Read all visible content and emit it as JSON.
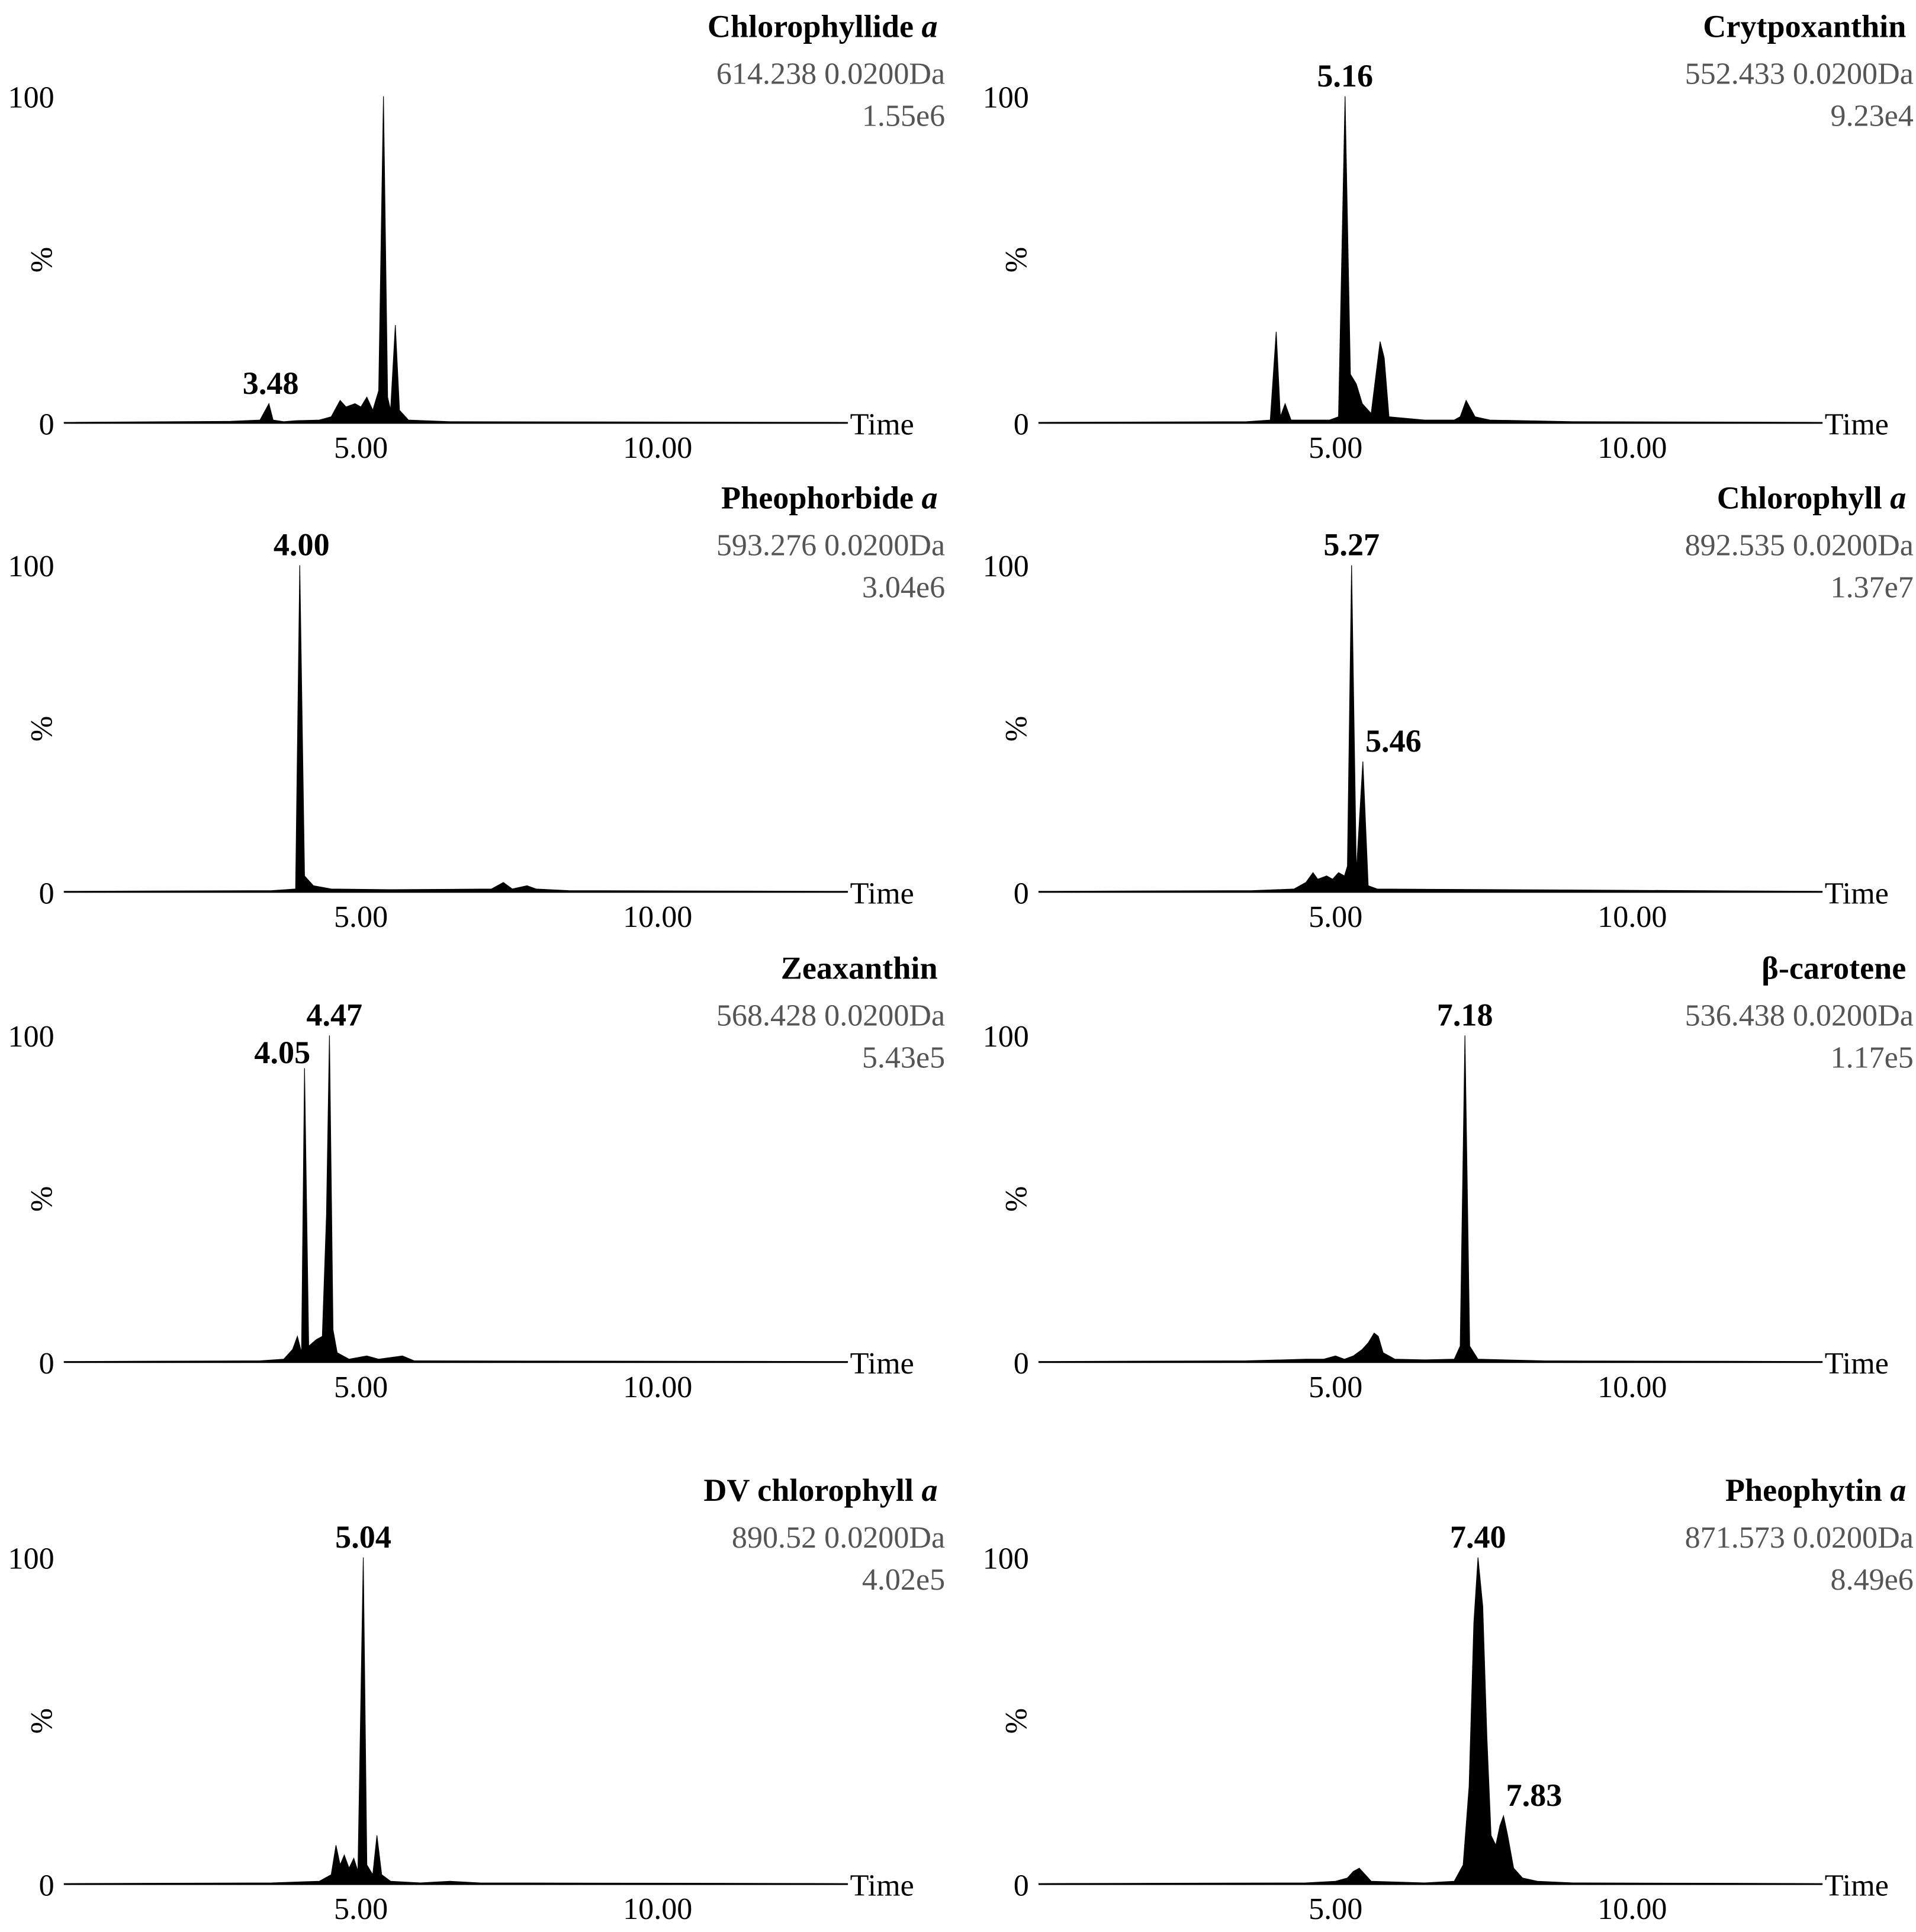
{
  "chart_data": [
    {
      "type": "area",
      "title": "Chlorophyllide",
      "title_italic": "a",
      "mass": "614.238 0.0200Da",
      "intensity": "1.55e6",
      "ylabel": "%",
      "xlabel": "Time",
      "yticks": [
        "0",
        "100"
      ],
      "xticks": [
        "5.00",
        "10.00"
      ],
      "xlim": [
        0,
        13.2
      ],
      "ylim": [
        0,
        100
      ],
      "peak_labels": [
        {
          "text": "3.48",
          "x": 3.48,
          "y": 6
        }
      ],
      "series": [
        {
          "values": [
            [
              0,
              0.3
            ],
            [
              2.8,
              0.6
            ],
            [
              3.3,
              1
            ],
            [
              3.45,
              6
            ],
            [
              3.52,
              1
            ],
            [
              3.7,
              0.5
            ],
            [
              3.9,
              0.8
            ],
            [
              4.3,
              1
            ],
            [
              4.5,
              2
            ],
            [
              4.65,
              7
            ],
            [
              4.75,
              5
            ],
            [
              4.9,
              6
            ],
            [
              5.0,
              5
            ],
            [
              5.1,
              8
            ],
            [
              5.2,
              4
            ],
            [
              5.3,
              10
            ],
            [
              5.38,
              100
            ],
            [
              5.45,
              8
            ],
            [
              5.5,
              4
            ],
            [
              5.58,
              30
            ],
            [
              5.65,
              4
            ],
            [
              5.8,
              1
            ],
            [
              6.5,
              0.5
            ],
            [
              13.2,
              0.3
            ]
          ]
        }
      ]
    },
    {
      "type": "area",
      "title": "Crytpoxanthin",
      "title_italic": "",
      "mass": "552.433 0.0200Da",
      "intensity": "9.23e4",
      "ylabel": "%",
      "xlabel": "Time",
      "yticks": [
        "0",
        "100"
      ],
      "xticks": [
        "5.00",
        "10.00"
      ],
      "xlim": [
        0,
        13.2
      ],
      "ylim": [
        0,
        100
      ],
      "peak_labels": [
        {
          "text": "5.16",
          "x": 5.16,
          "y": 100
        }
      ],
      "series": [
        {
          "values": [
            [
              0,
              0.3
            ],
            [
              3.5,
              0.5
            ],
            [
              3.9,
              1
            ],
            [
              4.0,
              28
            ],
            [
              4.07,
              2
            ],
            [
              4.15,
              6
            ],
            [
              4.25,
              1
            ],
            [
              4.6,
              1
            ],
            [
              4.9,
              1
            ],
            [
              5.05,
              2
            ],
            [
              5.16,
              100
            ],
            [
              5.25,
              15
            ],
            [
              5.35,
              12
            ],
            [
              5.45,
              6
            ],
            [
              5.6,
              3
            ],
            [
              5.75,
              25
            ],
            [
              5.82,
              20
            ],
            [
              5.9,
              2
            ],
            [
              6.5,
              1
            ],
            [
              7.0,
              1
            ],
            [
              7.1,
              2
            ],
            [
              7.2,
              7
            ],
            [
              7.35,
              2
            ],
            [
              7.6,
              1
            ],
            [
              9.0,
              0.5
            ],
            [
              13.2,
              0.3
            ]
          ]
        }
      ]
    },
    {
      "type": "area",
      "title": "Pheophorbide",
      "title_italic": "a",
      "mass": "593.276 0.0200Da",
      "intensity": "3.04e6",
      "ylabel": "%",
      "xlabel": "Time",
      "yticks": [
        "0",
        "100"
      ],
      "xticks": [
        "5.00",
        "10.00"
      ],
      "xlim": [
        0,
        13.2
      ],
      "ylim": [
        0,
        100
      ],
      "peak_labels": [
        {
          "text": "4.00",
          "x": 4.0,
          "y": 100
        }
      ],
      "series": [
        {
          "values": [
            [
              0,
              0.3
            ],
            [
              3.5,
              0.5
            ],
            [
              3.9,
              1
            ],
            [
              3.97,
              100
            ],
            [
              4.05,
              5
            ],
            [
              4.2,
              2
            ],
            [
              4.5,
              1
            ],
            [
              5.5,
              0.8
            ],
            [
              7.2,
              1
            ],
            [
              7.4,
              3
            ],
            [
              7.55,
              1
            ],
            [
              7.8,
              2
            ],
            [
              7.95,
              1
            ],
            [
              8.5,
              0.5
            ],
            [
              13.2,
              0.3
            ]
          ]
        }
      ]
    },
    {
      "type": "area",
      "title": "Chlorophyll",
      "title_italic": "a",
      "mass": "892.535 0.0200Da",
      "intensity": "1.37e7",
      "ylabel": "%",
      "xlabel": "Time",
      "yticks": [
        "0",
        "100"
      ],
      "xticks": [
        "5.00",
        "10.00"
      ],
      "xlim": [
        0,
        13.2
      ],
      "ylim": [
        0,
        100
      ],
      "peak_labels": [
        {
          "text": "5.27",
          "x": 5.27,
          "y": 100
        },
        {
          "text": "5.46",
          "x": 5.46,
          "y": 40
        }
      ],
      "series": [
        {
          "values": [
            [
              0,
              0.3
            ],
            [
              3.6,
              0.5
            ],
            [
              4.3,
              1
            ],
            [
              4.5,
              3
            ],
            [
              4.62,
              6
            ],
            [
              4.7,
              4
            ],
            [
              4.85,
              5
            ],
            [
              4.95,
              4
            ],
            [
              5.05,
              6
            ],
            [
              5.15,
              5
            ],
            [
              5.2,
              8
            ],
            [
              5.27,
              100
            ],
            [
              5.35,
              6
            ],
            [
              5.46,
              40
            ],
            [
              5.55,
              2
            ],
            [
              5.7,
              1
            ],
            [
              13.2,
              0.3
            ]
          ]
        }
      ]
    },
    {
      "type": "area",
      "title": "Zeaxanthin",
      "title_italic": "",
      "mass": "568.428 0.0200Da",
      "intensity": "5.43e5",
      "ylabel": "%",
      "xlabel": "Time",
      "yticks": [
        "0",
        "100"
      ],
      "xticks": [
        "5.00",
        "10.00"
      ],
      "xlim": [
        0,
        13.2
      ],
      "ylim": [
        0,
        100
      ],
      "peak_labels": [
        {
          "text": "4.05",
          "x": 4.05,
          "y": 90
        },
        {
          "text": "4.47",
          "x": 4.47,
          "y": 100
        }
      ],
      "series": [
        {
          "values": [
            [
              0,
              0.3
            ],
            [
              3.3,
              0.5
            ],
            [
              3.7,
              1
            ],
            [
              3.85,
              4
            ],
            [
              3.93,
              8
            ],
            [
              4.0,
              3
            ],
            [
              4.05,
              90
            ],
            [
              4.12,
              5
            ],
            [
              4.25,
              7
            ],
            [
              4.35,
              8
            ],
            [
              4.42,
              45
            ],
            [
              4.47,
              100
            ],
            [
              4.53,
              10
            ],
            [
              4.6,
              3
            ],
            [
              4.8,
              1
            ],
            [
              5.1,
              2
            ],
            [
              5.3,
              1
            ],
            [
              5.7,
              2
            ],
            [
              5.9,
              0.5
            ],
            [
              13.2,
              0.3
            ]
          ]
        }
      ]
    },
    {
      "type": "area",
      "title": "β-carotene",
      "title_italic": "",
      "mass": "536.438 0.0200Da",
      "intensity": "1.17e5",
      "ylabel": "%",
      "xlabel": "Time",
      "yticks": [
        "0",
        "100"
      ],
      "xticks": [
        "5.00",
        "10.00"
      ],
      "xlim": [
        0,
        13.2
      ],
      "ylim": [
        0,
        100
      ],
      "peak_labels": [
        {
          "text": "7.18",
          "x": 7.18,
          "y": 100
        }
      ],
      "series": [
        {
          "values": [
            [
              0,
              0.3
            ],
            [
              3.5,
              0.5
            ],
            [
              4.5,
              1
            ],
            [
              4.8,
              1
            ],
            [
              5.0,
              2
            ],
            [
              5.15,
              1
            ],
            [
              5.3,
              2
            ],
            [
              5.45,
              4
            ],
            [
              5.55,
              6
            ],
            [
              5.65,
              9
            ],
            [
              5.72,
              8
            ],
            [
              5.8,
              3
            ],
            [
              6.0,
              1
            ],
            [
              6.5,
              0.8
            ],
            [
              7.0,
              1
            ],
            [
              7.1,
              5
            ],
            [
              7.18,
              100
            ],
            [
              7.26,
              5
            ],
            [
              7.4,
              1
            ],
            [
              8.5,
              0.5
            ],
            [
              13.2,
              0.3
            ]
          ]
        }
      ]
    },
    {
      "type": "area",
      "title": "DV chlorophyll",
      "title_italic": "a",
      "mass": "890.52 0.0200Da",
      "intensity": "4.02e5",
      "ylabel": "%",
      "xlabel": "Time",
      "yticks": [
        "0",
        "100"
      ],
      "xticks": [
        "5.00",
        "10.00"
      ],
      "xlim": [
        0,
        13.2
      ],
      "ylim": [
        0,
        100
      ],
      "peak_labels": [
        {
          "text": "5.04",
          "x": 5.04,
          "y": 100
        }
      ],
      "series": [
        {
          "values": [
            [
              0,
              0.3
            ],
            [
              3.5,
              0.5
            ],
            [
              4.3,
              1
            ],
            [
              4.5,
              3
            ],
            [
              4.58,
              12
            ],
            [
              4.65,
              6
            ],
            [
              4.72,
              9
            ],
            [
              4.8,
              5
            ],
            [
              4.88,
              8
            ],
            [
              4.95,
              4
            ],
            [
              5.04,
              100
            ],
            [
              5.1,
              6
            ],
            [
              5.2,
              3
            ],
            [
              5.27,
              15
            ],
            [
              5.35,
              3
            ],
            [
              5.5,
              1
            ],
            [
              6.0,
              0.5
            ],
            [
              6.5,
              1
            ],
            [
              7.0,
              0.5
            ],
            [
              13.2,
              0.3
            ]
          ]
        }
      ]
    },
    {
      "type": "area",
      "title": "Pheophytin",
      "title_italic": "a",
      "mass": "871.573 0.0200Da",
      "intensity": "8.49e6",
      "ylabel": "%",
      "xlabel": "Time",
      "yticks": [
        "0",
        "100"
      ],
      "xticks": [
        "5.00",
        "10.00"
      ],
      "xlim": [
        0,
        13.2
      ],
      "ylim": [
        0,
        100
      ],
      "peak_labels": [
        {
          "text": "7.40",
          "x": 7.4,
          "y": 100
        },
        {
          "text": "7.83",
          "x": 7.83,
          "y": 21
        }
      ],
      "series": [
        {
          "values": [
            [
              0,
              0.3
            ],
            [
              4.5,
              0.5
            ],
            [
              5.0,
              1
            ],
            [
              5.2,
              2
            ],
            [
              5.3,
              4
            ],
            [
              5.4,
              5
            ],
            [
              5.5,
              3
            ],
            [
              5.6,
              1
            ],
            [
              6.5,
              0.5
            ],
            [
              7.0,
              1
            ],
            [
              7.15,
              6
            ],
            [
              7.25,
              30
            ],
            [
              7.33,
              80
            ],
            [
              7.4,
              100
            ],
            [
              7.48,
              85
            ],
            [
              7.55,
              45
            ],
            [
              7.62,
              15
            ],
            [
              7.7,
              12
            ],
            [
              7.77,
              18
            ],
            [
              7.83,
              21
            ],
            [
              7.9,
              15
            ],
            [
              8.0,
              5
            ],
            [
              8.15,
              2
            ],
            [
              8.4,
              1
            ],
            [
              9.0,
              0.5
            ],
            [
              13.2,
              0.3
            ]
          ]
        }
      ]
    }
  ]
}
